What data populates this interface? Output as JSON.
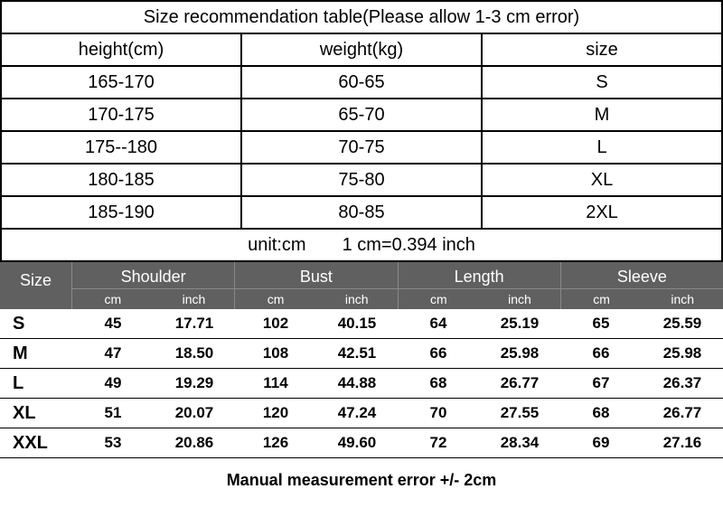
{
  "rec_table": {
    "title": "Size recommendation table(Please allow 1-3 cm error)",
    "columns": [
      "height(cm)",
      "weight(kg)",
      "size"
    ],
    "rows": [
      [
        "165-170",
        "60-65",
        "S"
      ],
      [
        "170-175",
        "65-70",
        "M"
      ],
      [
        "175--180",
        "70-75",
        "L"
      ],
      [
        "180-185",
        "75-80",
        "XL"
      ],
      [
        "185-190",
        "80-85",
        "2XL"
      ]
    ],
    "unit_left": "unit:cm",
    "unit_right": "1 cm=0.394 inch"
  },
  "meas_table": {
    "size_header": "Size",
    "groups": [
      "Shoulder",
      "Bust",
      "Length",
      "Sleeve"
    ],
    "sub_units": [
      "cm",
      "inch"
    ],
    "rows": [
      {
        "size": "S",
        "vals": [
          [
            "45",
            "17.71"
          ],
          [
            "102",
            "40.15"
          ],
          [
            "64",
            "25.19"
          ],
          [
            "65",
            "25.59"
          ]
        ]
      },
      {
        "size": "M",
        "vals": [
          [
            "47",
            "18.50"
          ],
          [
            "108",
            "42.51"
          ],
          [
            "66",
            "25.98"
          ],
          [
            "66",
            "25.98"
          ]
        ]
      },
      {
        "size": "L",
        "vals": [
          [
            "49",
            "19.29"
          ],
          [
            "114",
            "44.88"
          ],
          [
            "68",
            "26.77"
          ],
          [
            "67",
            "26.37"
          ]
        ]
      },
      {
        "size": "XL",
        "vals": [
          [
            "51",
            "20.07"
          ],
          [
            "120",
            "47.24"
          ],
          [
            "70",
            "27.55"
          ],
          [
            "68",
            "26.77"
          ]
        ]
      },
      {
        "size": "XXL",
        "vals": [
          [
            "53",
            "20.86"
          ],
          [
            "126",
            "49.60"
          ],
          [
            "72",
            "28.34"
          ],
          [
            "69",
            "27.16"
          ]
        ]
      }
    ]
  },
  "footer": "Manual measurement error +/- 2cm",
  "colors": {
    "header_bg": "#606060",
    "header_fg": "#ffffff",
    "border": "#000000",
    "bg": "#ffffff"
  }
}
